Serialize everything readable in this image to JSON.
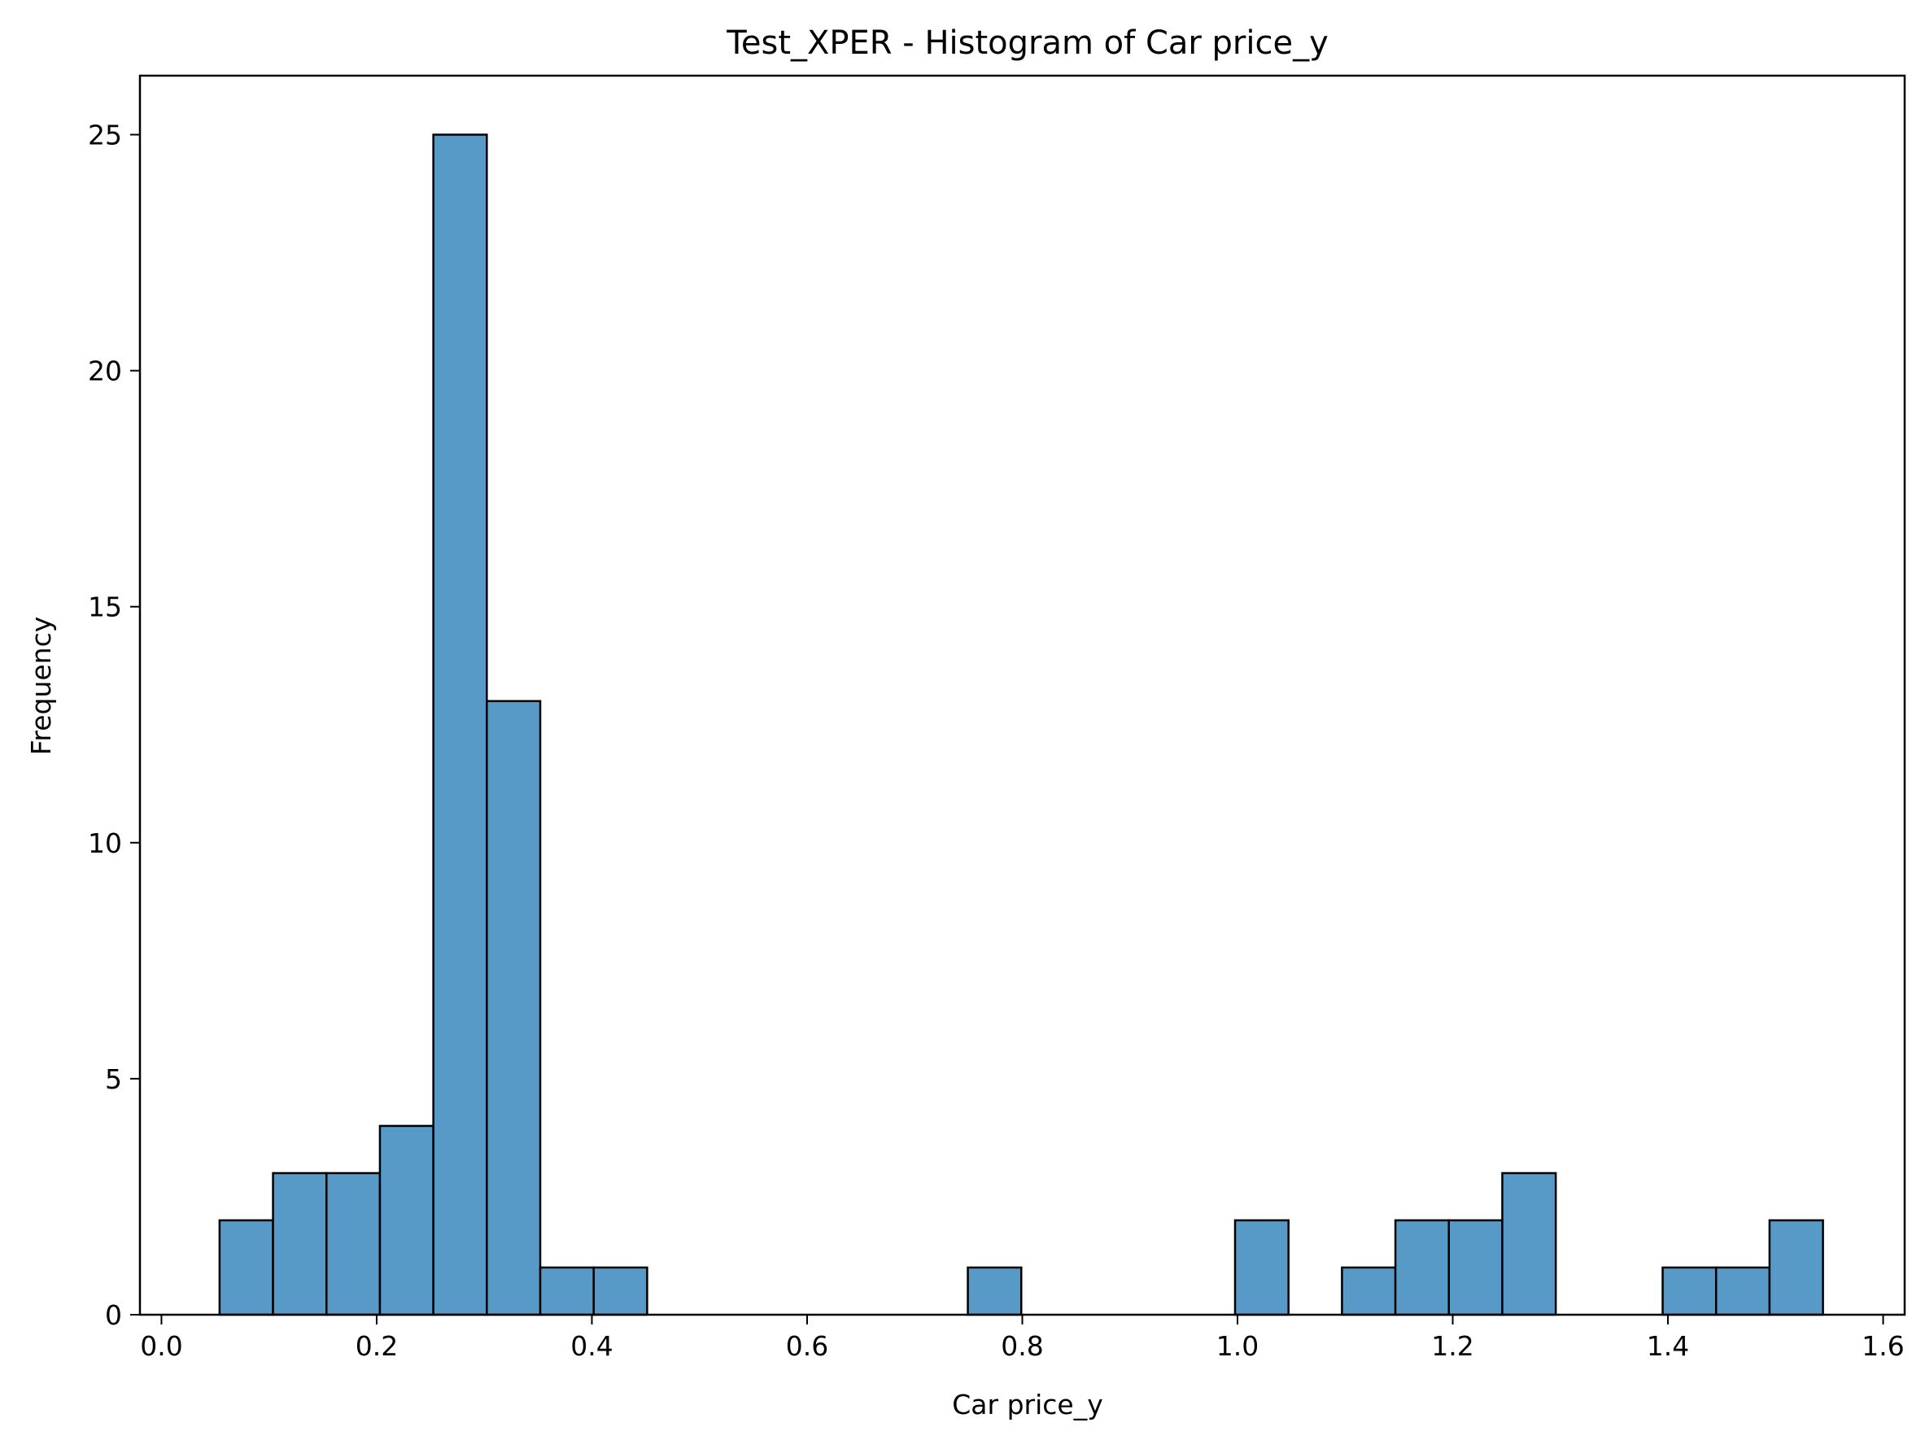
{
  "chart_data": {
    "type": "bar",
    "histogram": true,
    "title": "Test_XPER - Histogram of Car price_y",
    "xlabel": "Car price_y",
    "ylabel": "Frequency",
    "xlim": [
      -0.02,
      1.62
    ],
    "ylim": [
      0,
      26.25
    ],
    "bin_start": 0.054,
    "bin_width": 0.04967,
    "counts": [
      2,
      3,
      3,
      4,
      25,
      13,
      1,
      1,
      0,
      0,
      0,
      0,
      0,
      0,
      1,
      0,
      0,
      0,
      0,
      2,
      0,
      1,
      2,
      2,
      3,
      0,
      0,
      1,
      1,
      2
    ],
    "xticks": [
      0.0,
      0.2,
      0.4,
      0.6,
      0.8,
      1.0,
      1.2,
      1.4,
      1.6
    ],
    "xtick_labels": [
      "0.0",
      "0.2",
      "0.4",
      "0.6",
      "0.8",
      "1.0",
      "1.2",
      "1.4",
      "1.6"
    ],
    "yticks": [
      0,
      5,
      10,
      15,
      20,
      25
    ],
    "ytick_labels": [
      "0",
      "5",
      "10",
      "15",
      "20",
      "25"
    ],
    "bar_color": "#5799c7",
    "edge_color": "#000000",
    "grid": false
  }
}
